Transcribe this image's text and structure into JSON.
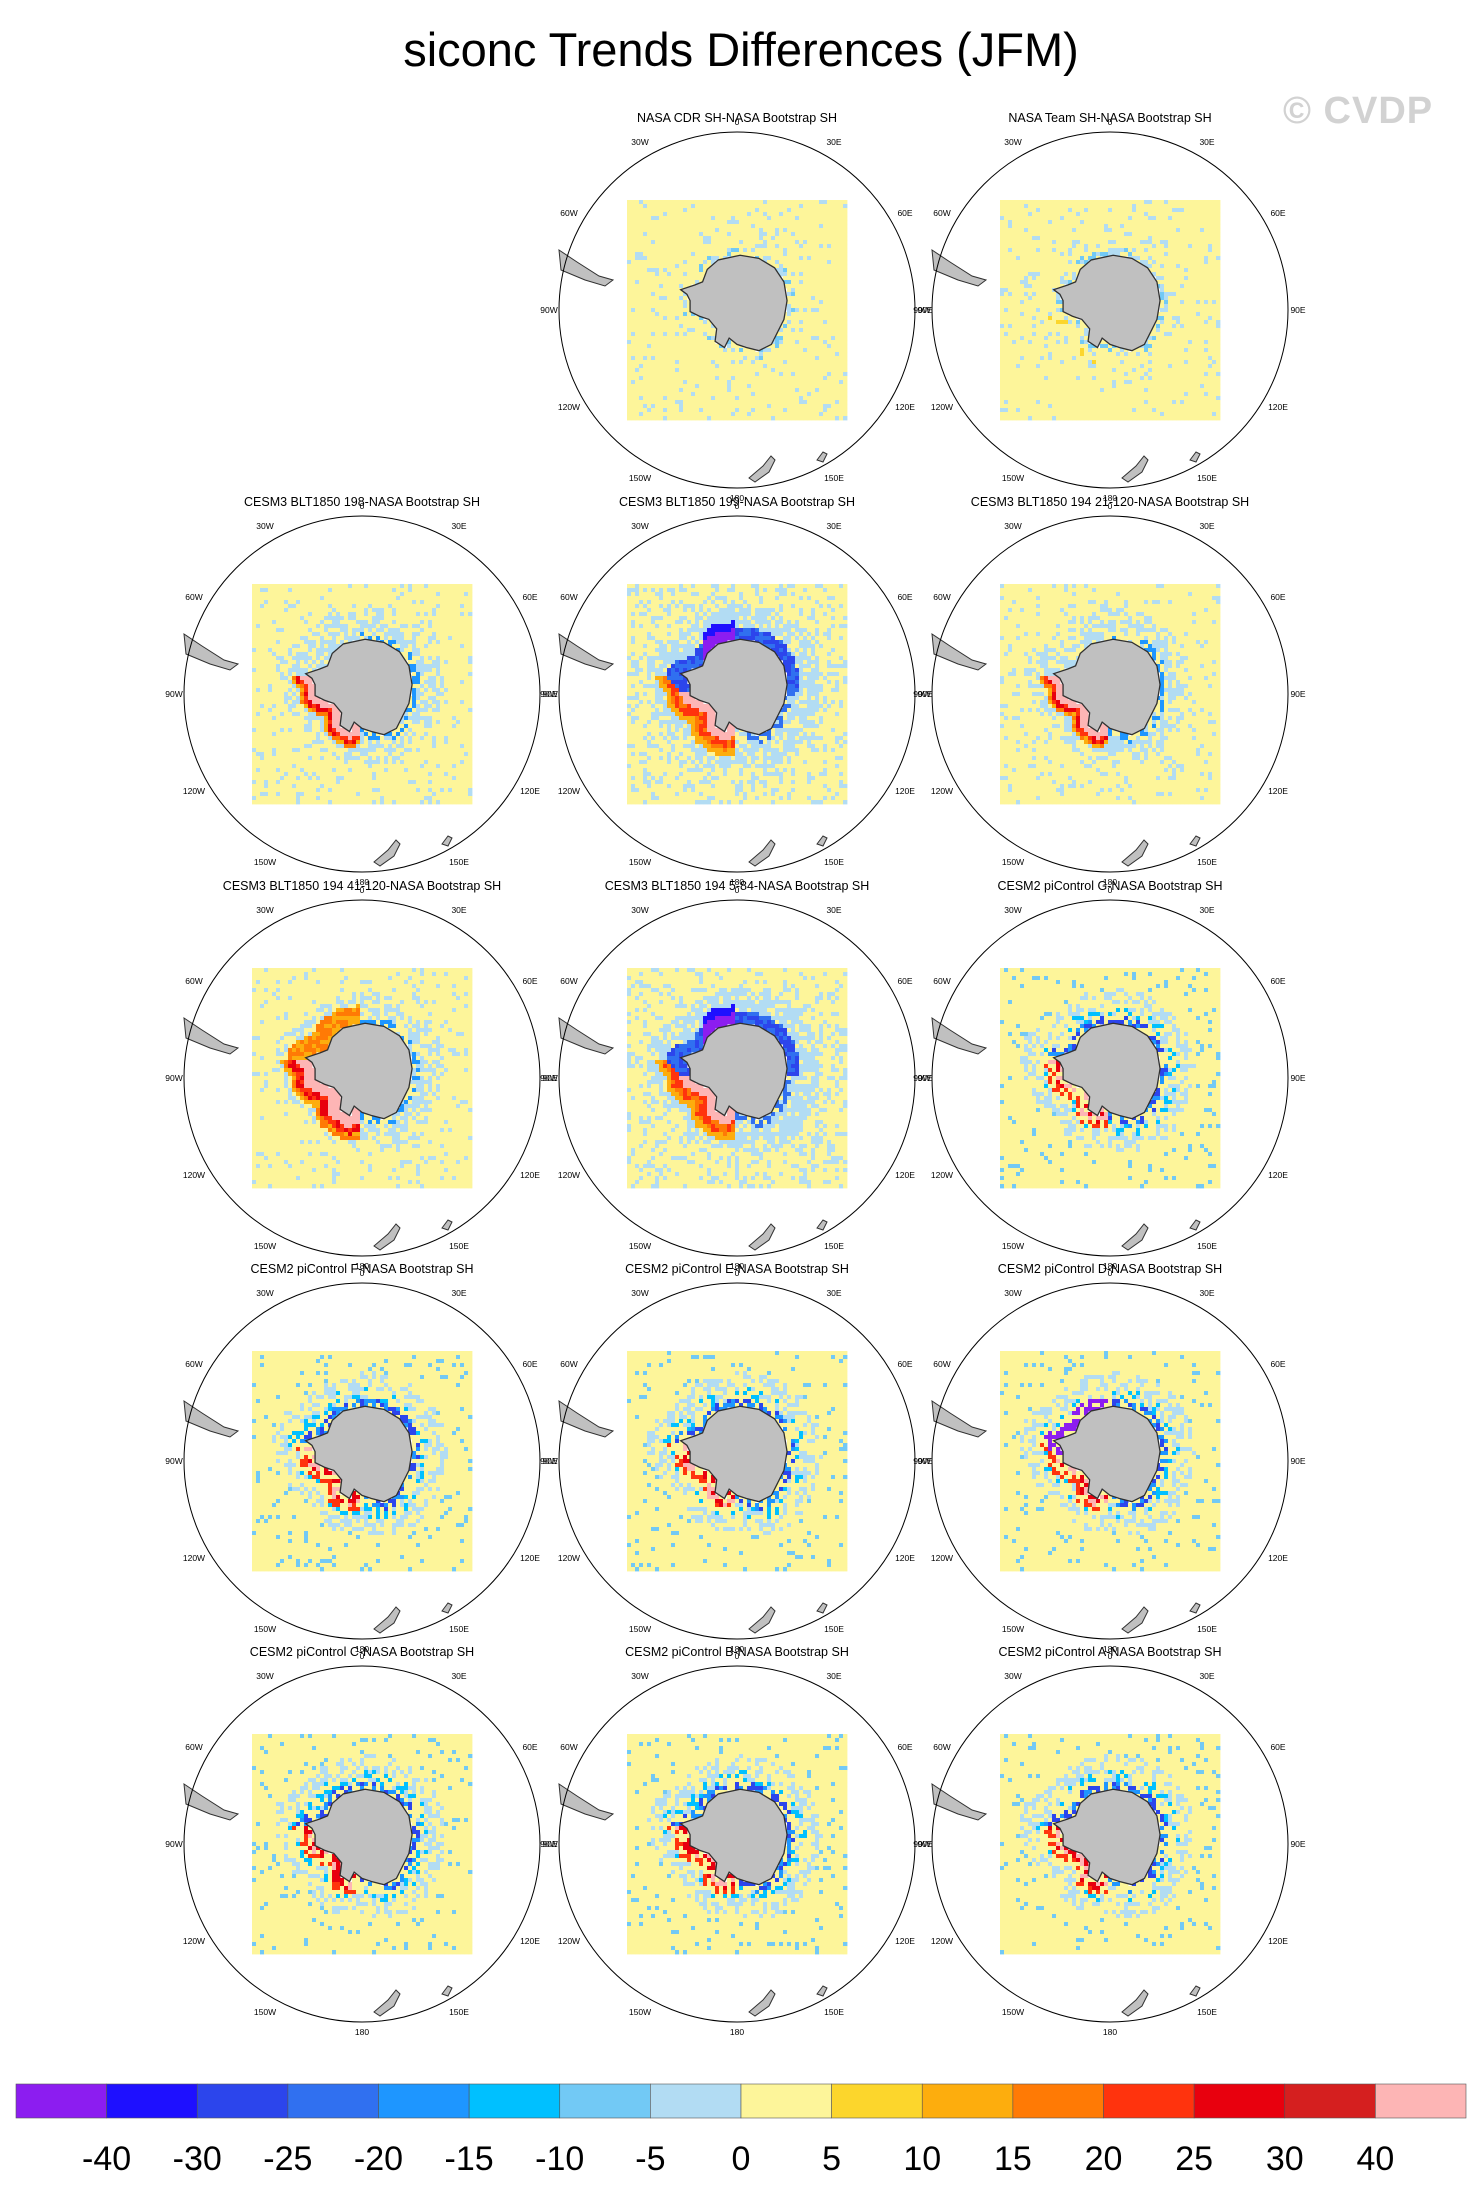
{
  "title": "siconc Trends Differences (JFM)",
  "watermark": "© CVDP",
  "lon_labels": [
    "0",
    "30E",
    "60E",
    "90E",
    "120E",
    "150E",
    "180",
    "150W",
    "120W",
    "90W",
    "60W",
    "30W"
  ],
  "colors": {
    "land": "#c0c0c0",
    "land_outline": "#303030",
    "zero_bin": "#fdf59a",
    "circle": "#000000"
  },
  "chart_data": {
    "type": "heatmap",
    "title": "siconc Trends Differences (JFM)",
    "colorbar": {
      "labels": [
        "-40",
        "-30",
        "-25",
        "-20",
        "-15",
        "-10",
        "-5",
        "0",
        "5",
        "10",
        "15",
        "20",
        "25",
        "30",
        "40"
      ],
      "colors": [
        "#8c1df0",
        "#1e10ff",
        "#2c45ec",
        "#3070f0",
        "#1e96ff",
        "#00c0ff",
        "#72c9f5",
        "#b2dcf3",
        "#fdf59a",
        "#fcd62c",
        "#fdad0d",
        "#ff7a05",
        "#ff330d",
        "#e8000e",
        "#d51f1f",
        "#fdb5b5"
      ]
    },
    "panels": [
      {
        "title": "NASA CDR SH-NASA Bootstrap SH",
        "row": 0,
        "col": 1,
        "mode": "obs1"
      },
      {
        "title": "NASA Team SH-NASA Bootstrap SH",
        "row": 0,
        "col": 2,
        "mode": "obs2"
      },
      {
        "title": "CESM3 BLT1850 198-NASA Bootstrap SH",
        "row": 1,
        "col": 0,
        "mode": "red"
      },
      {
        "title": "CESM3 BLT1850 199-NASA Bootstrap SH",
        "row": 1,
        "col": 1,
        "mode": "bluepurple"
      },
      {
        "title": "CESM3 BLT1850 194 21-120-NASA Bootstrap SH",
        "row": 1,
        "col": 2,
        "mode": "red2"
      },
      {
        "title": "CESM3 BLT1850 194 41-120-NASA Bootstrap SH",
        "row": 2,
        "col": 0,
        "mode": "redbig"
      },
      {
        "title": "CESM3 BLT1850 194 5-84-NASA Bootstrap SH",
        "row": 2,
        "col": 1,
        "mode": "bluepurple2"
      },
      {
        "title": "CESM2 piControl G-NASA Bootstrap SH",
        "row": 2,
        "col": 2,
        "mode": "mixed"
      },
      {
        "title": "CESM2 piControl F-NASA Bootstrap SH",
        "row": 3,
        "col": 0,
        "mode": "mixedsmall"
      },
      {
        "title": "CESM2 piControl E-NASA Bootstrap SH",
        "row": 3,
        "col": 1,
        "mode": "mixed"
      },
      {
        "title": "CESM2 piControl D-NASA Bootstrap SH",
        "row": 3,
        "col": 2,
        "mode": "mixedpurple"
      },
      {
        "title": "CESM2 piControl C-NASA Bootstrap SH",
        "row": 4,
        "col": 0,
        "mode": "mixed"
      },
      {
        "title": "CESM2 piControl B-NASA Bootstrap SH",
        "row": 4,
        "col": 1,
        "mode": "mixed"
      },
      {
        "title": "CESM2 piControl A-NASA Bootstrap SH",
        "row": 4,
        "col": 2,
        "mode": "mixed"
      }
    ]
  }
}
